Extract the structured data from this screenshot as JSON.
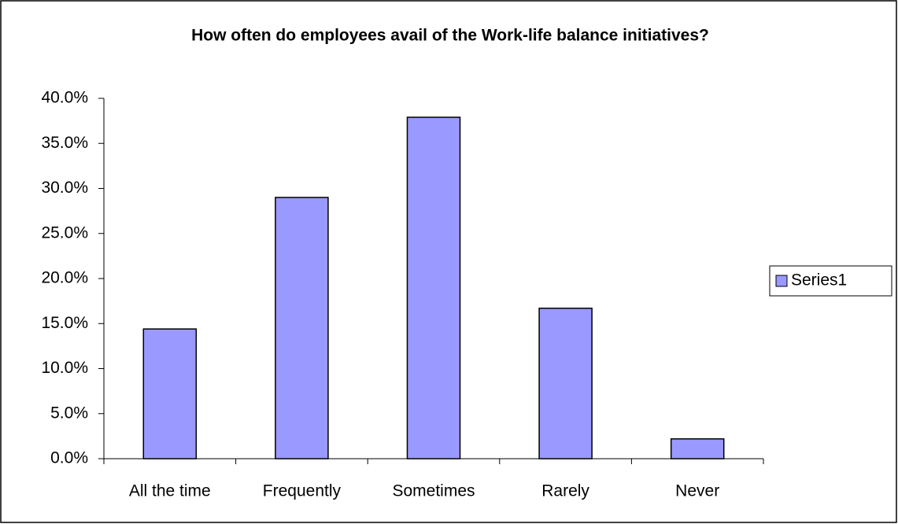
{
  "chart_data": {
    "type": "bar",
    "title": "How often do employees avail of the Work-life balance initiatives?",
    "categories": [
      "All the time",
      "Frequently",
      "Sometimes",
      "Rarely",
      "Never"
    ],
    "series": [
      {
        "name": "Series1",
        "color": "#9999ff",
        "values": [
          14.4,
          29.0,
          37.9,
          16.7,
          2.2
        ]
      }
    ],
    "ylim": [
      0,
      40
    ],
    "yticks": [
      {
        "value": 0,
        "label": "0.0%"
      },
      {
        "value": 5,
        "label": "5.0%"
      },
      {
        "value": 10,
        "label": "10.0%"
      },
      {
        "value": 15,
        "label": "15.0%"
      },
      {
        "value": 20,
        "label": "20.0%"
      },
      {
        "value": 25,
        "label": "25.0%"
      },
      {
        "value": 30,
        "label": "30.0%"
      },
      {
        "value": 35,
        "label": "35.0%"
      },
      {
        "value": 40,
        "label": "40.0%"
      }
    ],
    "grid": false,
    "legend": "right"
  }
}
